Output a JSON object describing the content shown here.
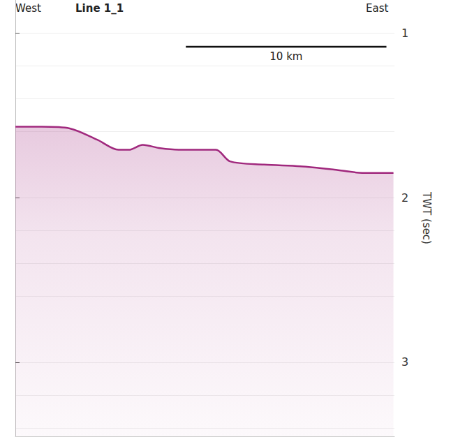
{
  "chart_data": {
    "type": "line",
    "title": "Line 1_1",
    "left_label": "West",
    "right_label": "East",
    "y_label": "TWT (sec)",
    "x": [
      0,
      1.32,
      2.71,
      4.1,
      5.14,
      5.66,
      6.35,
      7.22,
      8.26,
      10.0,
      10.7,
      12.4,
      14.2,
      15.9,
      17.3,
      18.85
    ],
    "values": [
      1.57,
      1.57,
      1.58,
      1.65,
      1.71,
      1.71,
      1.68,
      1.7,
      1.71,
      1.71,
      1.78,
      1.8,
      1.81,
      1.83,
      1.85,
      1.85
    ],
    "color": "#a0287d",
    "xlim": [
      0,
      18.9
    ],
    "ylim": [
      0.8,
      3.45
    ],
    "yticks": [
      1,
      2,
      3
    ],
    "grid": true,
    "tick_labels": "y",
    "scale_bar": {
      "length": 10,
      "label": "10 km"
    }
  }
}
